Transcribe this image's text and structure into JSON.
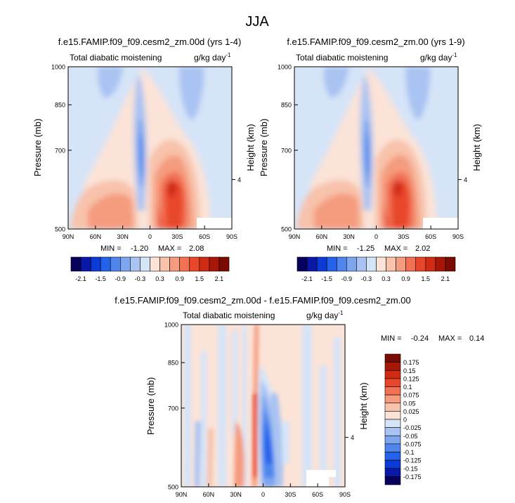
{
  "page_title": "JJA",
  "chart_data": [
    {
      "type": "heatmap",
      "title": "f.e15.FAMIP.f09_f09.cesm2_zm.00d (yrs 1-4)",
      "subtitle_left": "Total diabatic moistening",
      "units": "g/kg day",
      "units_exponent": "-1",
      "ylabel": "Pressure (mb)",
      "ylabel_right": "Height (km)",
      "y_ticks": [
        "500",
        "700",
        "850",
        "1000"
      ],
      "y_ticks_right": [
        "4"
      ],
      "x_ticks": [
        "90N",
        "60N",
        "30N",
        "0",
        "30S",
        "60S",
        "90S"
      ],
      "xlim": [
        "90N",
        "90S"
      ],
      "ylim": [
        1000,
        500
      ],
      "min_label": "MIN =",
      "min_value": "-1.20",
      "max_label": "MAX =",
      "max_value": "2.08",
      "colorbar_labels": [
        "-2.1",
        "-1.5",
        "-0.9",
        "-0.3",
        "0.3",
        "0.9",
        "1.5",
        "2.1"
      ]
    },
    {
      "type": "heatmap",
      "title": "f.e15.FAMIP.f09_f09.cesm2_zm.00 (yrs 1-9)",
      "subtitle_left": "Total diabatic moistening",
      "units": "g/kg day",
      "units_exponent": "-1",
      "ylabel": "Pressure (mb)",
      "ylabel_right": "Height (km)",
      "y_ticks": [
        "500",
        "700",
        "850",
        "1000"
      ],
      "y_ticks_right": [
        "4"
      ],
      "x_ticks": [
        "90N",
        "60N",
        "30N",
        "0",
        "30S",
        "60S",
        "90S"
      ],
      "xlim": [
        "90N",
        "90S"
      ],
      "ylim": [
        1000,
        500
      ],
      "min_label": "MIN =",
      "min_value": "-1.25",
      "max_label": "MAX =",
      "max_value": "2.02",
      "colorbar_labels": [
        "-2.1",
        "-1.5",
        "-0.9",
        "-0.3",
        "0.3",
        "0.9",
        "1.5",
        "2.1"
      ]
    },
    {
      "type": "heatmap",
      "title": "f.e15.FAMIP.f09_f09.cesm2_zm.00d - f.e15.FAMIP.f09_f09.cesm2_zm.00",
      "subtitle_left": "Total diabatic moistening",
      "units": "g/kg day",
      "units_exponent": "-1",
      "ylabel": "Pressure (mb)",
      "ylabel_right": "Height (km)",
      "y_ticks": [
        "500",
        "700",
        "850",
        "1000"
      ],
      "y_ticks_right": [
        "4"
      ],
      "x_ticks": [
        "90N",
        "60N",
        "30N",
        "0",
        "30S",
        "60S",
        "90S"
      ],
      "xlim": [
        "90N",
        "90S"
      ],
      "ylim": [
        1000,
        500
      ],
      "min_label": "MIN =",
      "min_value": "-0.24",
      "max_label": "MAX =",
      "max_value": "0.14",
      "colorbar_labels": [
        "0.175",
        "0.15",
        "0.125",
        "0.1",
        "0.075",
        "0.05",
        "0.025",
        "0",
        "-0.025",
        "-0.05",
        "-0.075",
        "-0.1",
        "-0.125",
        "-0.15",
        "-0.175"
      ]
    }
  ],
  "colors": {
    "colorbar_16": [
      "#08005e",
      "#0a18a8",
      "#0b3bd6",
      "#2562eb",
      "#4f86ee",
      "#7ea6ef",
      "#a9c3f2",
      "#d6e4f8",
      "#fbe3d8",
      "#f8c2ab",
      "#f59b7e",
      "#f27152",
      "#e8462a",
      "#cf2a12",
      "#a81608",
      "#7a0a04"
    ],
    "diff_colorbar_16": [
      "#7a0a04",
      "#a81608",
      "#cf2a12",
      "#e8462a",
      "#f27152",
      "#f59b7e",
      "#f8c2ab",
      "#fbe3d8",
      "#d6e4f8",
      "#a9c3f2",
      "#7ea6ef",
      "#4f86ee",
      "#2562eb",
      "#0b3bd6",
      "#0a18a8",
      "#08005e"
    ]
  }
}
